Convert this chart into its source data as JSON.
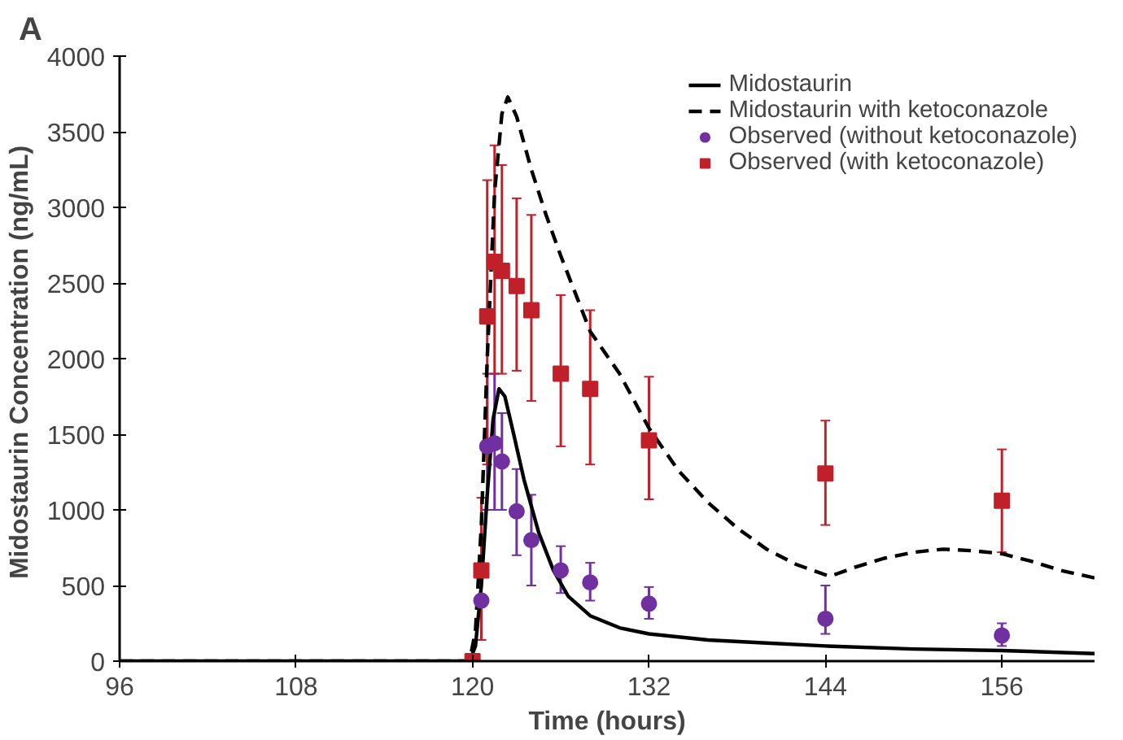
{
  "chart_data": {
    "type": "line",
    "xlabel": "Time (hours)",
    "ylabel": "Midostaurin  Concentration (ng/mL)",
    "annotations": [
      "A"
    ],
    "xlim": [
      96,
      162.3
    ],
    "xticks": [
      96,
      108,
      120,
      132,
      144,
      156
    ],
    "ylim": [
      0,
      4000
    ],
    "yticks": [
      0,
      500,
      1000,
      1500,
      2000,
      2500,
      3000,
      3500,
      4000
    ],
    "grid": false,
    "legend": "top right",
    "series": [
      {
        "name": "Midostaurin",
        "line_style": "solid",
        "color": "#000000",
        "x": [
          96,
          119.8,
          120.2,
          120.6,
          121,
          121.4,
          121.8,
          122.2,
          122.8,
          123.5,
          124.5,
          125.5,
          126.5,
          128,
          130,
          132,
          136,
          140,
          144,
          150,
          156,
          162.3
        ],
        "values": [
          0,
          0,
          100,
          500,
          1100,
          1600,
          1800,
          1750,
          1500,
          1200,
          850,
          600,
          430,
          300,
          220,
          180,
          140,
          120,
          100,
          80,
          70,
          50
        ]
      },
      {
        "name": "Midostaurin with ketoconazole",
        "line_style": "dashed",
        "color": "#000000",
        "x": [
          96,
          119.8,
          120.2,
          120.6,
          121,
          121.5,
          122,
          122.4,
          123,
          124,
          125,
          126,
          128,
          130,
          132,
          134,
          136,
          138,
          140,
          142,
          144.3,
          146,
          148,
          150,
          152,
          154,
          156,
          158,
          160,
          162.3
        ],
        "values": [
          0,
          0,
          200,
          900,
          2000,
          3100,
          3620,
          3730,
          3600,
          3250,
          2950,
          2680,
          2180,
          1900,
          1540,
          1260,
          1050,
          880,
          740,
          640,
          560,
          620,
          680,
          720,
          740,
          730,
          710,
          660,
          600,
          550
        ]
      },
      {
        "name": "Observed (without ketoconazole)",
        "type": "scatter",
        "marker": "circle",
        "color": "#7030a0",
        "x": [
          120.6,
          121,
          121.5,
          122,
          123,
          124,
          126,
          128,
          132,
          144,
          156
        ],
        "values": [
          400,
          1420,
          1440,
          1320,
          990,
          800,
          600,
          520,
          380,
          280,
          170
        ],
        "errors": [
          null,
          [
            1000,
            1900
          ],
          [
            1000,
            1900
          ],
          [
            1000,
            1640
          ],
          [
            700,
            1270
          ],
          [
            500,
            1100
          ],
          [
            450,
            760
          ],
          [
            400,
            650
          ],
          [
            280,
            490
          ],
          [
            180,
            500
          ],
          [
            100,
            250
          ]
        ]
      },
      {
        "name": "Observed (with ketoconazole)",
        "type": "scatter",
        "marker": "square",
        "color": "#c0202a",
        "x": [
          120,
          120.6,
          121,
          121.5,
          122,
          123,
          124,
          126,
          128,
          132,
          144,
          156
        ],
        "values": [
          0,
          600,
          2280,
          2640,
          2580,
          2480,
          2320,
          1900,
          1800,
          1460,
          1240,
          1060
        ],
        "errors": [
          null,
          [
            140,
            1080
          ],
          [
            1300,
            3180
          ],
          [
            1900,
            3410
          ],
          [
            1900,
            3280
          ],
          [
            1920,
            3060
          ],
          [
            1720,
            2950
          ],
          [
            1420,
            2420
          ],
          [
            1300,
            2320
          ],
          [
            1070,
            1880
          ],
          [
            900,
            1590
          ],
          [
            720,
            1400
          ]
        ]
      }
    ]
  }
}
